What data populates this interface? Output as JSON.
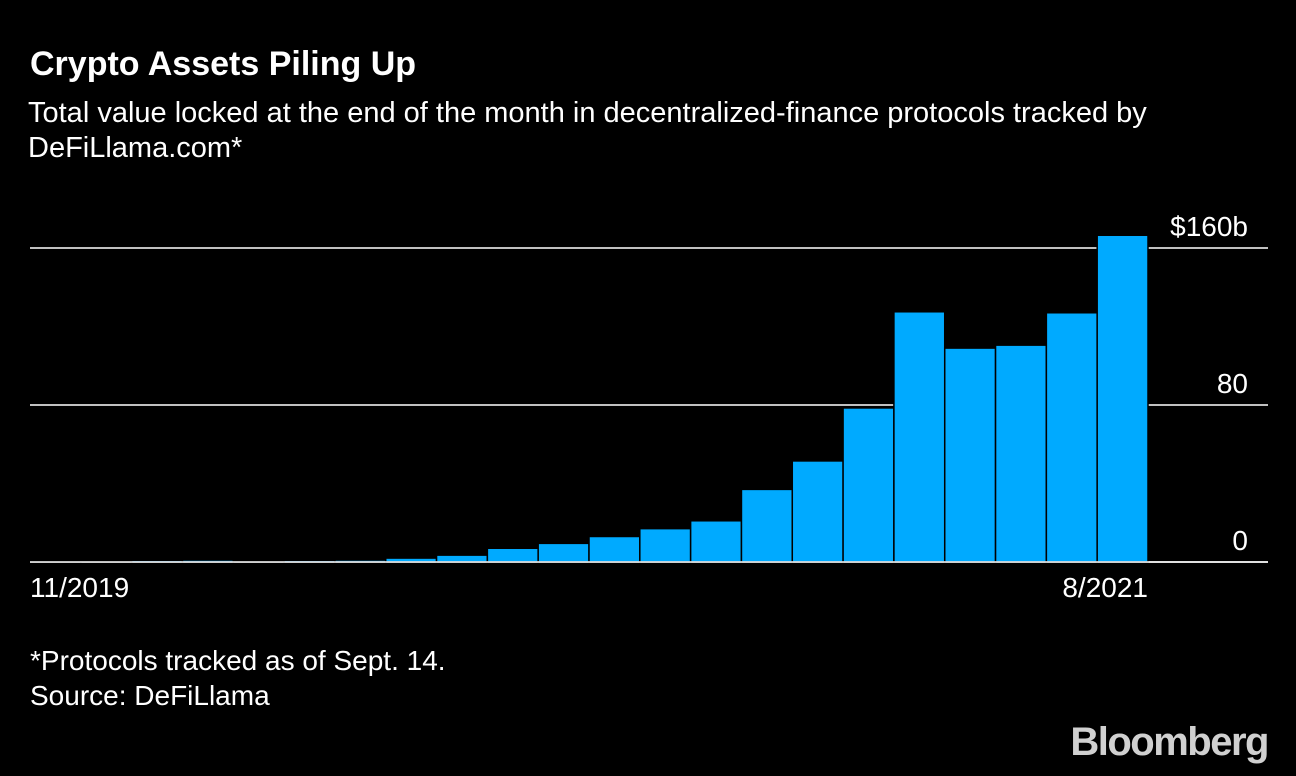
{
  "chart_data": {
    "type": "bar",
    "title": "Crypto Assets Piling Up",
    "subtitle": "Total value locked at the end of the month in decentralized-finance protocols tracked by DeFiLlama.com*",
    "categories": [
      "11/2019",
      null,
      null,
      null,
      null,
      null,
      null,
      null,
      null,
      null,
      null,
      null,
      null,
      null,
      null,
      null,
      null,
      null,
      null,
      null,
      null,
      "8/2021"
    ],
    "values": [
      0.6,
      0.7,
      0.9,
      1,
      0.6,
      0.9,
      1,
      2,
      3.5,
      7,
      9.5,
      13,
      17,
      21,
      37,
      51.5,
      78.5,
      127.5,
      109,
      110.5,
      127,
      166.5
    ],
    "color": "#00aaff",
    "ylim": [
      0,
      170
    ],
    "yticks": [
      0,
      80,
      {
        "value": 160,
        "label": "$160b"
      }
    ],
    "grid": true,
    "footnote": "*Protocols tracked as of Sept. 14.",
    "source": "Source: DeFiLlama",
    "brand": "Bloomberg"
  }
}
